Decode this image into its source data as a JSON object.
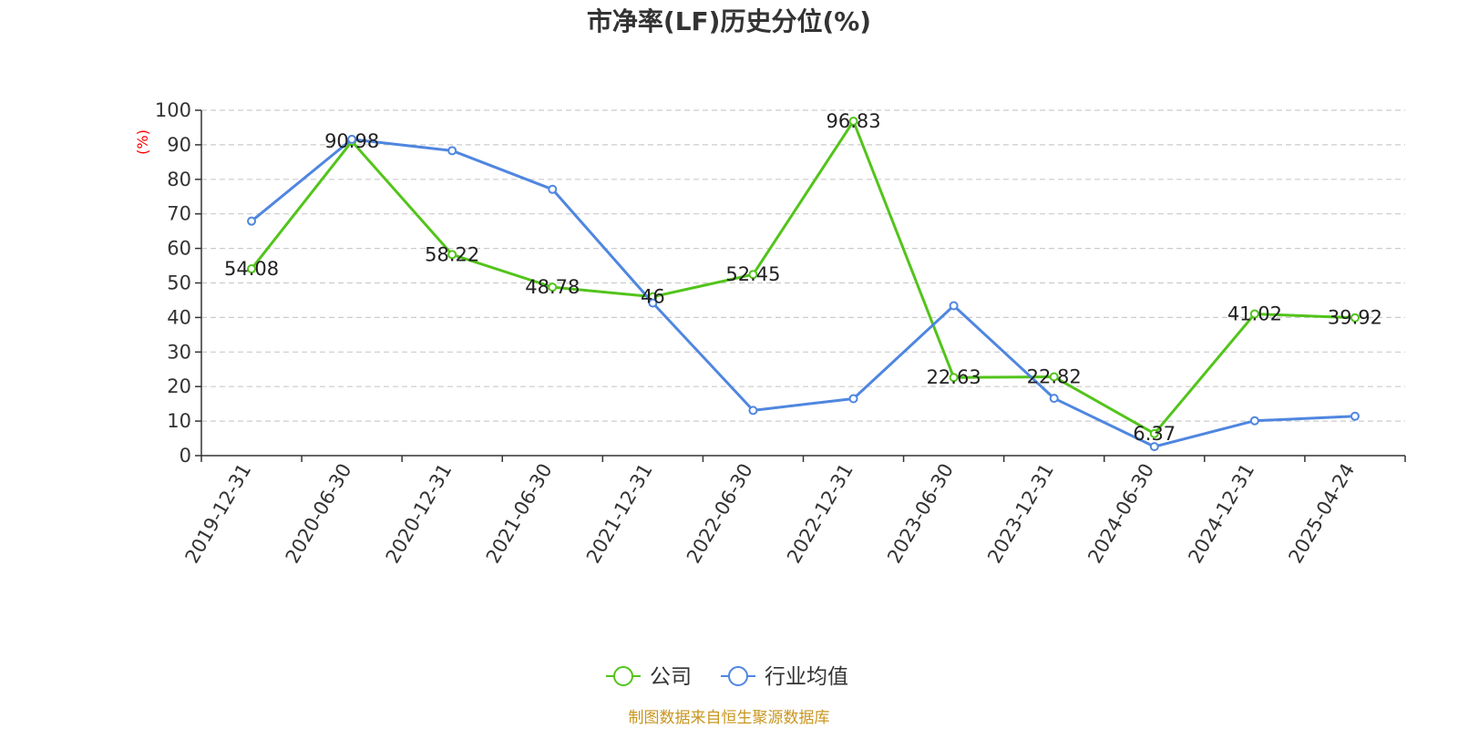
{
  "chart_data": {
    "type": "line",
    "title": "市净率(LF)历史分位(%)",
    "ylabel": "(%)",
    "xlabel": "",
    "categories": [
      "2019-12-31",
      "2020-06-30",
      "2020-12-31",
      "2021-06-30",
      "2021-12-31",
      "2022-06-30",
      "2022-12-31",
      "2023-06-30",
      "2023-12-31",
      "2024-06-30",
      "2024-12-31",
      "2025-04-24"
    ],
    "ylim": [
      0,
      100
    ],
    "yticks": [
      0,
      10,
      20,
      30,
      40,
      50,
      60,
      70,
      80,
      90,
      100
    ],
    "grid": true,
    "legend_position": "bottom-center",
    "series": [
      {
        "name": "公司",
        "color": "#52c41a",
        "show_labels": true,
        "values": [
          54.08,
          90.98,
          58.22,
          48.78,
          46,
          52.45,
          96.83,
          22.63,
          22.82,
          6.37,
          41.02,
          39.92
        ]
      },
      {
        "name": "行业均值",
        "color": "#4f86e0",
        "show_labels": false,
        "values": [
          67.9,
          91.6,
          88.3,
          77.1,
          44.2,
          13.1,
          16.5,
          43.4,
          16.6,
          2.6,
          10.1,
          11.4
        ]
      }
    ],
    "source": "制图数据来自恒生聚源数据库",
    "colors": {
      "title": "#333333",
      "axis": "#333333",
      "ylabel": "#ff0000",
      "grid": "#cccccc",
      "source": "#c8961e"
    }
  }
}
